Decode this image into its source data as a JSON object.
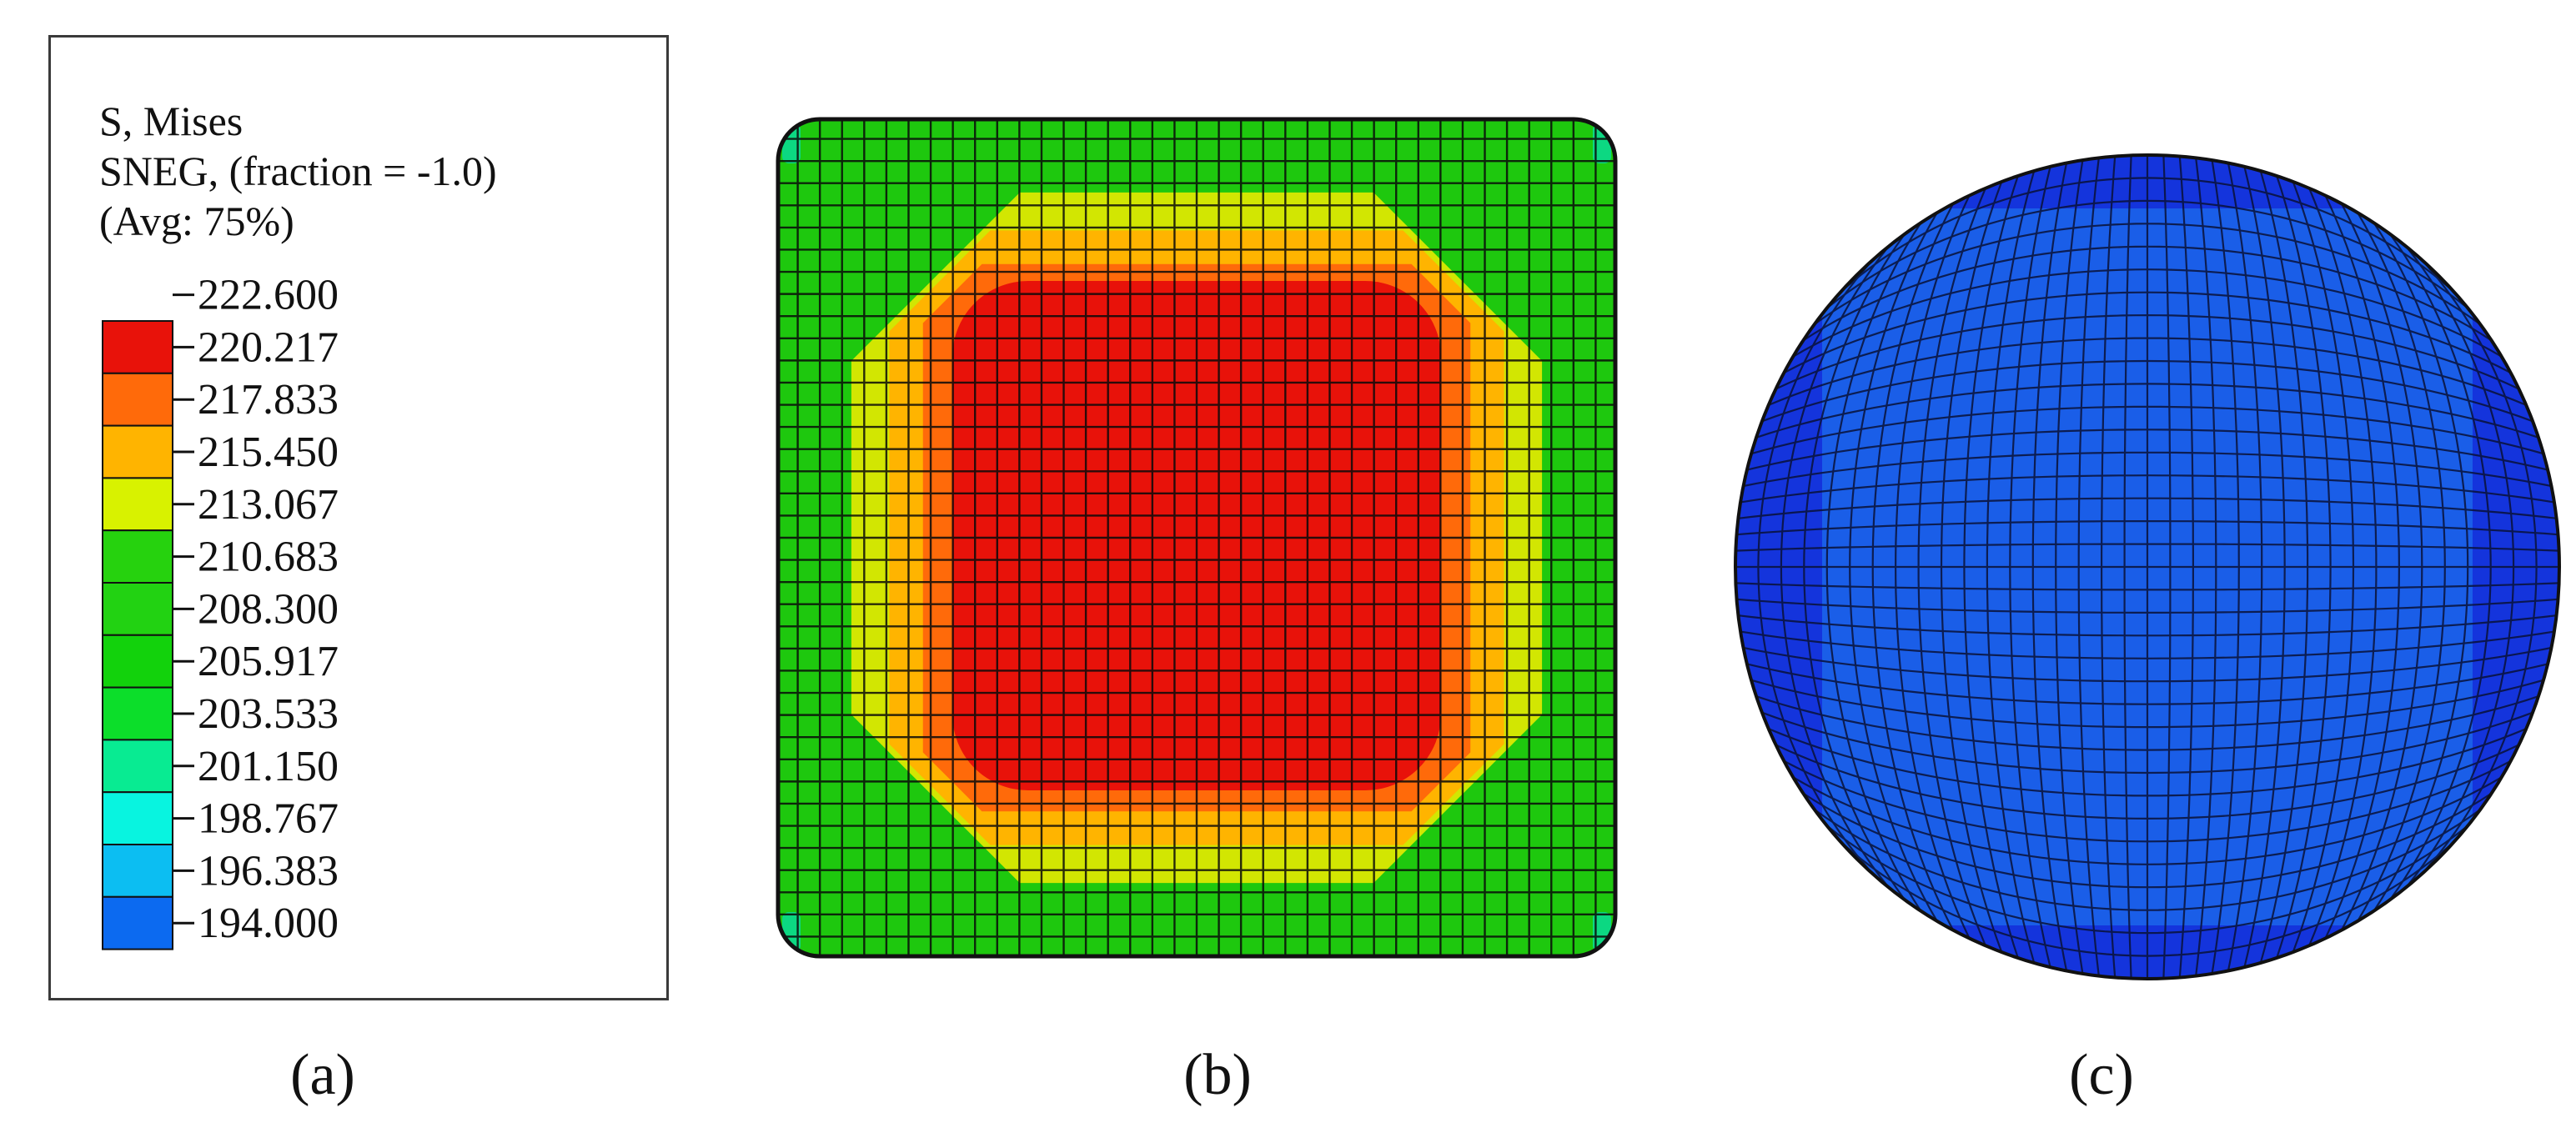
{
  "legend": {
    "title_lines": [
      "S, Mises",
      "SNEG, (fraction = -1.0)",
      "(Avg: 75%)"
    ],
    "values": [
      "222.600",
      "220.217",
      "217.833",
      "215.450",
      "213.067",
      "210.683",
      "208.300",
      "205.917",
      "203.533",
      "201.150",
      "198.767",
      "196.383",
      "194.000"
    ],
    "colors": [
      "#e8120a",
      "#ff6a0a",
      "#ffb400",
      "#d8f200",
      "#26d20e",
      "#22d212",
      "#12d20c",
      "#0cde2a",
      "#08eb92",
      "#08f4e0",
      "#0cbef2",
      "#0c6af0",
      "#0a28e8"
    ]
  },
  "panels": {
    "a_label": "(a)",
    "b_label": "(b)",
    "c_label": "(c)"
  },
  "plate": {
    "grid_cells": 38,
    "zones": [
      "#1ec80e",
      "#d2e602",
      "#ffb400",
      "#ff6a0a",
      "#e8120a"
    ],
    "corner_color": "#08dca0"
  },
  "disc": {
    "outer_color": "#1434dc",
    "inner_color": "#1a5ee8",
    "grid_cells": 36
  }
}
